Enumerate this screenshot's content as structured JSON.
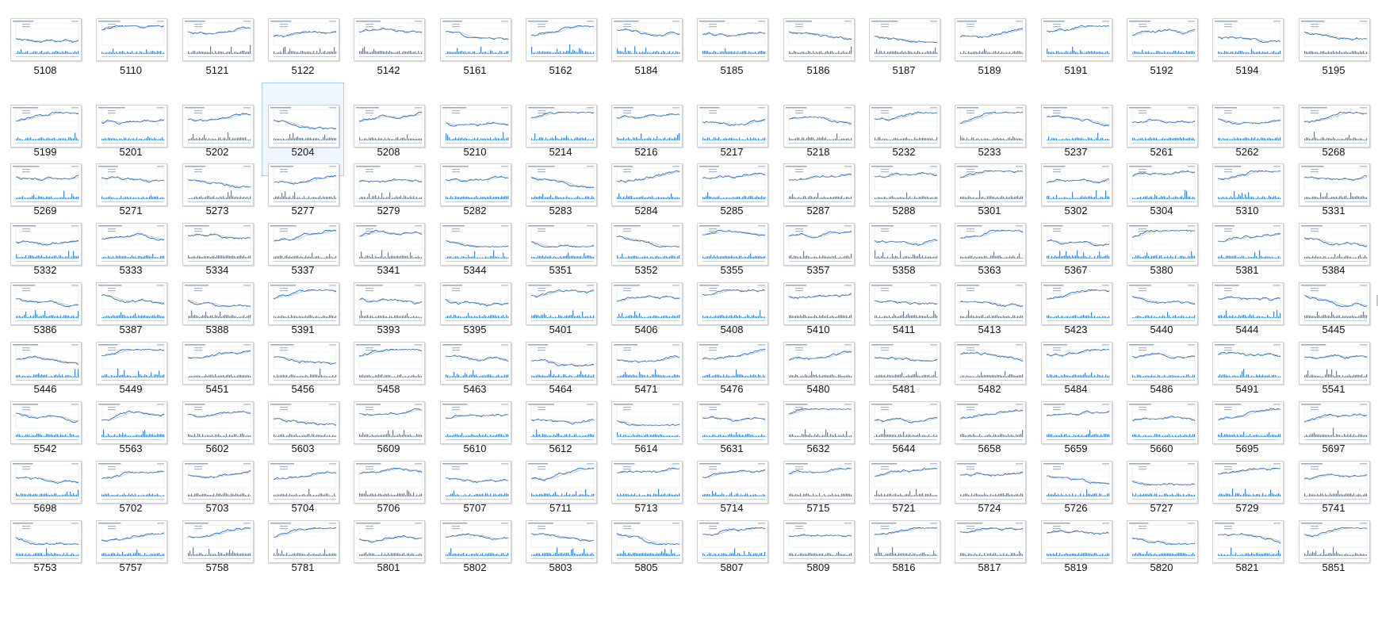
{
  "window": {
    "title": ""
  },
  "selected_index": 19,
  "colors": {
    "accent": "#1f6fd1",
    "selection": "#cce4fb"
  },
  "items": [
    "5108",
    "5110",
    "5121",
    "5122",
    "5142",
    "5161",
    "5162",
    "5184",
    "5185",
    "5186",
    "5187",
    "5189",
    "5191",
    "5192",
    "5194",
    "5195",
    "5199",
    "5201",
    "5202",
    "5204",
    "5208",
    "5210",
    "5214",
    "5216",
    "5217",
    "5218",
    "5232",
    "5233",
    "5237",
    "5261",
    "5262",
    "5268",
    "5269",
    "5271",
    "5273",
    "5277",
    "5279",
    "5282",
    "5283",
    "5284",
    "5285",
    "5287",
    "5288",
    "5301",
    "5302",
    "5304",
    "5310",
    "5331",
    "5332",
    "5333",
    "5334",
    "5337",
    "5341",
    "5344",
    "5351",
    "5352",
    "5355",
    "5357",
    "5358",
    "5363",
    "5367",
    "5380",
    "5381",
    "5384",
    "5386",
    "5387",
    "5388",
    "5391",
    "5393",
    "5395",
    "5401",
    "5406",
    "5408",
    "5410",
    "5411",
    "5413",
    "5423",
    "5440",
    "5444",
    "5445",
    "5446",
    "5449",
    "5451",
    "5456",
    "5458",
    "5463",
    "5464",
    "5471",
    "5476",
    "5480",
    "5481",
    "5482",
    "5484",
    "5486",
    "5491",
    "5541",
    "5542",
    "5563",
    "5602",
    "5603",
    "5609",
    "5610",
    "5612",
    "5614",
    "5631",
    "5632",
    "5644",
    "5658",
    "5659",
    "5660",
    "5695",
    "5697",
    "5698",
    "5702",
    "5703",
    "5704",
    "5706",
    "5707",
    "5711",
    "5713",
    "5714",
    "5715",
    "5721",
    "5724",
    "5726",
    "5727",
    "5729",
    "5741",
    "5753",
    "5757",
    "5758",
    "5781",
    "5801",
    "5802",
    "5803",
    "5805",
    "5807",
    "5809",
    "5816",
    "5817",
    "5819",
    "5820",
    "5821",
    "5851"
  ]
}
